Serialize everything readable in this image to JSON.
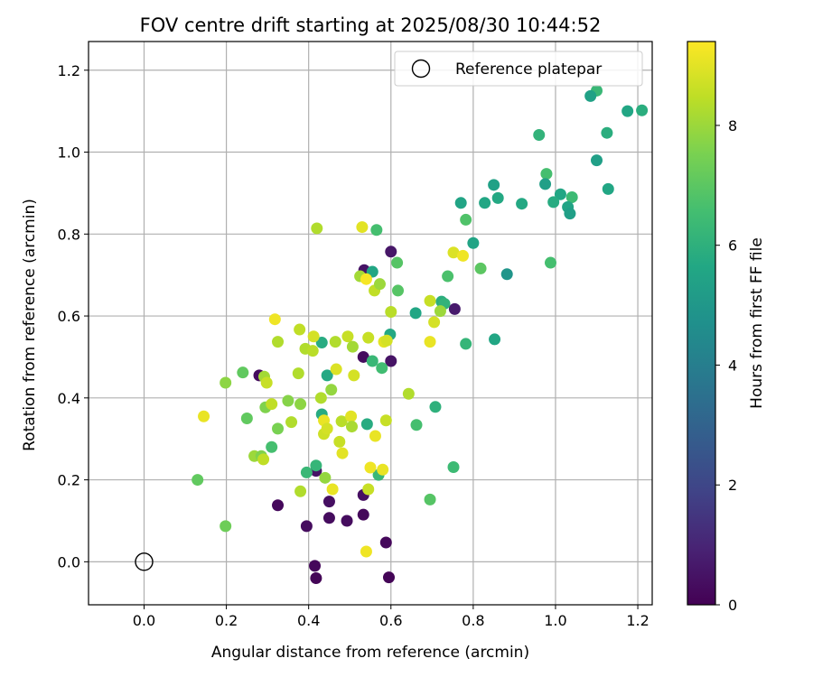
{
  "chart_data": {
    "type": "scatter",
    "title": "FOV centre drift starting at 2025/08/30 10:44:52",
    "xlabel": "Angular distance from reference (arcmin)",
    "ylabel": "Rotation from reference (arcmin)",
    "xlim": [
      -0.135,
      1.235
    ],
    "ylim": [
      -0.105,
      1.27
    ],
    "xticks": [
      "0.0",
      "0.2",
      "0.4",
      "0.6",
      "0.8",
      "1.0",
      "1.2"
    ],
    "yticks": [
      "0.0",
      "0.2",
      "0.4",
      "0.6",
      "0.8",
      "1.0",
      "1.2"
    ],
    "grid": true,
    "legend": {
      "position": "top-right",
      "label": "Reference platepar"
    },
    "reference_point": {
      "x": 0.0,
      "y": 0.0
    },
    "colorbar": {
      "label": "Hours from first FF file",
      "colormap": "viridis",
      "range": [
        0,
        9.4
      ],
      "ticks": [
        "0",
        "2",
        "4",
        "6",
        "8"
      ]
    },
    "points": [
      {
        "x": 0.28,
        "y": 0.455,
        "h": 0.3
      },
      {
        "x": 0.325,
        "y": 0.138,
        "h": 0.2
      },
      {
        "x": 0.395,
        "y": 0.087,
        "h": 0.3
      },
      {
        "x": 0.415,
        "y": -0.01,
        "h": 0.2
      },
      {
        "x": 0.418,
        "y": -0.04,
        "h": 0.1
      },
      {
        "x": 0.418,
        "y": 0.222,
        "h": 0.5
      },
      {
        "x": 0.45,
        "y": 0.147,
        "h": 0.4
      },
      {
        "x": 0.45,
        "y": 0.107,
        "h": 0.3
      },
      {
        "x": 0.493,
        "y": 0.1,
        "h": 0.3
      },
      {
        "x": 0.533,
        "y": 0.115,
        "h": 0.2
      },
      {
        "x": 0.533,
        "y": 0.163,
        "h": 0.4
      },
      {
        "x": 0.533,
        "y": 0.5,
        "h": 0.3
      },
      {
        "x": 0.535,
        "y": 0.712,
        "h": 0.5
      },
      {
        "x": 0.588,
        "y": 0.047,
        "h": 0.2
      },
      {
        "x": 0.595,
        "y": -0.038,
        "h": 0.1
      },
      {
        "x": 0.6,
        "y": 0.757,
        "h": 0.6
      },
      {
        "x": 0.6,
        "y": 0.49,
        "h": 0.5
      },
      {
        "x": 0.755,
        "y": 0.617,
        "h": 0.7
      },
      {
        "x": 1.1,
        "y": 1.15,
        "h": 6.3
      },
      {
        "x": 1.085,
        "y": 1.137,
        "h": 5.4
      },
      {
        "x": 1.175,
        "y": 1.1,
        "h": 5.6
      },
      {
        "x": 1.21,
        "y": 1.102,
        "h": 5.9
      },
      {
        "x": 0.96,
        "y": 1.042,
        "h": 6.1
      },
      {
        "x": 1.125,
        "y": 1.047,
        "h": 5.9
      },
      {
        "x": 1.1,
        "y": 0.98,
        "h": 5.3
      },
      {
        "x": 0.978,
        "y": 0.947,
        "h": 6.6
      },
      {
        "x": 0.975,
        "y": 0.922,
        "h": 5.3
      },
      {
        "x": 0.85,
        "y": 0.92,
        "h": 5.4
      },
      {
        "x": 1.012,
        "y": 0.897,
        "h": 5.6
      },
      {
        "x": 1.04,
        "y": 0.89,
        "h": 6.4
      },
      {
        "x": 1.128,
        "y": 0.91,
        "h": 5.6
      },
      {
        "x": 0.86,
        "y": 0.888,
        "h": 5.7
      },
      {
        "x": 0.995,
        "y": 0.878,
        "h": 5.8
      },
      {
        "x": 0.77,
        "y": 0.876,
        "h": 5.5
      },
      {
        "x": 0.828,
        "y": 0.876,
        "h": 5.6
      },
      {
        "x": 0.918,
        "y": 0.874,
        "h": 5.7
      },
      {
        "x": 1.03,
        "y": 0.866,
        "h": 5.5
      },
      {
        "x": 1.035,
        "y": 0.85,
        "h": 5.3
      },
      {
        "x": 0.782,
        "y": 0.835,
        "h": 6.8
      },
      {
        "x": 0.565,
        "y": 0.81,
        "h": 6.6
      },
      {
        "x": 0.8,
        "y": 0.778,
        "h": 5.5
      },
      {
        "x": 0.615,
        "y": 0.73,
        "h": 6.9
      },
      {
        "x": 0.988,
        "y": 0.73,
        "h": 6.6
      },
      {
        "x": 0.818,
        "y": 0.716,
        "h": 7.0
      },
      {
        "x": 0.882,
        "y": 0.702,
        "h": 4.9
      },
      {
        "x": 0.555,
        "y": 0.708,
        "h": 5.6
      },
      {
        "x": 0.738,
        "y": 0.697,
        "h": 6.7
      },
      {
        "x": 0.617,
        "y": 0.662,
        "h": 6.9
      },
      {
        "x": 0.723,
        "y": 0.635,
        "h": 5.9
      },
      {
        "x": 0.73,
        "y": 0.63,
        "h": 6.1
      },
      {
        "x": 0.66,
        "y": 0.607,
        "h": 5.6
      },
      {
        "x": 0.598,
        "y": 0.555,
        "h": 5.7
      },
      {
        "x": 0.782,
        "y": 0.532,
        "h": 6.2
      },
      {
        "x": 0.852,
        "y": 0.543,
        "h": 5.6
      },
      {
        "x": 0.555,
        "y": 0.49,
        "h": 6.3
      },
      {
        "x": 0.578,
        "y": 0.473,
        "h": 6.5
      },
      {
        "x": 0.445,
        "y": 0.455,
        "h": 5.7
      },
      {
        "x": 0.432,
        "y": 0.535,
        "h": 5.8
      },
      {
        "x": 0.708,
        "y": 0.378,
        "h": 6.0
      },
      {
        "x": 0.542,
        "y": 0.336,
        "h": 5.8
      },
      {
        "x": 0.432,
        "y": 0.36,
        "h": 5.8
      },
      {
        "x": 0.662,
        "y": 0.334,
        "h": 6.6
      },
      {
        "x": 0.31,
        "y": 0.28,
        "h": 6.6
      },
      {
        "x": 0.752,
        "y": 0.231,
        "h": 6.4
      },
      {
        "x": 0.418,
        "y": 0.235,
        "h": 6.2
      },
      {
        "x": 0.395,
        "y": 0.218,
        "h": 6.3
      },
      {
        "x": 0.57,
        "y": 0.212,
        "h": 6.3
      },
      {
        "x": 0.695,
        "y": 0.152,
        "h": 6.9
      },
      {
        "x": 0.13,
        "y": 0.2,
        "h": 7.1
      },
      {
        "x": 0.198,
        "y": 0.087,
        "h": 7.3
      },
      {
        "x": 0.24,
        "y": 0.462,
        "h": 7.1
      },
      {
        "x": 0.25,
        "y": 0.35,
        "h": 7.1
      },
      {
        "x": 0.198,
        "y": 0.437,
        "h": 7.8
      },
      {
        "x": 0.325,
        "y": 0.325,
        "h": 7.5
      },
      {
        "x": 0.35,
        "y": 0.393,
        "h": 7.7
      },
      {
        "x": 0.358,
        "y": 0.341,
        "h": 8.3
      },
      {
        "x": 0.295,
        "y": 0.377,
        "h": 7.6
      },
      {
        "x": 0.268,
        "y": 0.258,
        "h": 8.0
      },
      {
        "x": 0.285,
        "y": 0.258,
        "h": 7.6
      },
      {
        "x": 0.29,
        "y": 0.25,
        "h": 8.5
      },
      {
        "x": 0.292,
        "y": 0.452,
        "h": 8.1
      },
      {
        "x": 0.298,
        "y": 0.437,
        "h": 8.6
      },
      {
        "x": 0.31,
        "y": 0.385,
        "h": 8.5
      },
      {
        "x": 0.325,
        "y": 0.537,
        "h": 8.3
      },
      {
        "x": 0.375,
        "y": 0.46,
        "h": 8.3
      },
      {
        "x": 0.378,
        "y": 0.567,
        "h": 8.5
      },
      {
        "x": 0.38,
        "y": 0.385,
        "h": 7.8
      },
      {
        "x": 0.38,
        "y": 0.172,
        "h": 8.3
      },
      {
        "x": 0.392,
        "y": 0.52,
        "h": 8.3
      },
      {
        "x": 0.41,
        "y": 0.515,
        "h": 8.4
      },
      {
        "x": 0.412,
        "y": 0.55,
        "h": 8.8
      },
      {
        "x": 0.42,
        "y": 0.814,
        "h": 8.3
      },
      {
        "x": 0.43,
        "y": 0.4,
        "h": 8.3
      },
      {
        "x": 0.437,
        "y": 0.345,
        "h": 9.1
      },
      {
        "x": 0.437,
        "y": 0.312,
        "h": 8.7
      },
      {
        "x": 0.44,
        "y": 0.205,
        "h": 7.9
      },
      {
        "x": 0.445,
        "y": 0.325,
        "h": 8.8
      },
      {
        "x": 0.455,
        "y": 0.42,
        "h": 7.9
      },
      {
        "x": 0.458,
        "y": 0.177,
        "h": 9.1
      },
      {
        "x": 0.465,
        "y": 0.537,
        "h": 8.3
      },
      {
        "x": 0.467,
        "y": 0.47,
        "h": 8.9
      },
      {
        "x": 0.475,
        "y": 0.293,
        "h": 8.6
      },
      {
        "x": 0.48,
        "y": 0.343,
        "h": 8.4
      },
      {
        "x": 0.482,
        "y": 0.265,
        "h": 9.0
      },
      {
        "x": 0.495,
        "y": 0.55,
        "h": 8.6
      },
      {
        "x": 0.503,
        "y": 0.355,
        "h": 9.0
      },
      {
        "x": 0.505,
        "y": 0.33,
        "h": 8.2
      },
      {
        "x": 0.507,
        "y": 0.525,
        "h": 8.1
      },
      {
        "x": 0.51,
        "y": 0.455,
        "h": 8.8
      },
      {
        "x": 0.525,
        "y": 0.697,
        "h": 8.1
      },
      {
        "x": 0.53,
        "y": 0.817,
        "h": 9.0
      },
      {
        "x": 0.54,
        "y": 0.025,
        "h": 9.2
      },
      {
        "x": 0.54,
        "y": 0.69,
        "h": 9.3
      },
      {
        "x": 0.545,
        "y": 0.547,
        "h": 8.6
      },
      {
        "x": 0.545,
        "y": 0.177,
        "h": 8.6
      },
      {
        "x": 0.55,
        "y": 0.23,
        "h": 9.2
      },
      {
        "x": 0.56,
        "y": 0.662,
        "h": 8.5
      },
      {
        "x": 0.562,
        "y": 0.307,
        "h": 9.1
      },
      {
        "x": 0.573,
        "y": 0.678,
        "h": 8.0
      },
      {
        "x": 0.58,
        "y": 0.225,
        "h": 9.1
      },
      {
        "x": 0.583,
        "y": 0.537,
        "h": 9.0
      },
      {
        "x": 0.588,
        "y": 0.345,
        "h": 8.6
      },
      {
        "x": 0.59,
        "y": 0.54,
        "h": 8.8
      },
      {
        "x": 0.6,
        "y": 0.61,
        "h": 8.4
      },
      {
        "x": 0.643,
        "y": 0.41,
        "h": 8.3
      },
      {
        "x": 0.695,
        "y": 0.637,
        "h": 8.6
      },
      {
        "x": 0.695,
        "y": 0.537,
        "h": 9.1
      },
      {
        "x": 0.705,
        "y": 0.585,
        "h": 8.8
      },
      {
        "x": 0.72,
        "y": 0.612,
        "h": 8.0
      },
      {
        "x": 0.752,
        "y": 0.755,
        "h": 8.9
      },
      {
        "x": 0.775,
        "y": 0.747,
        "h": 9.2
      },
      {
        "x": 0.318,
        "y": 0.592,
        "h": 9.2
      },
      {
        "x": 0.145,
        "y": 0.355,
        "h": 9.1
      }
    ]
  }
}
